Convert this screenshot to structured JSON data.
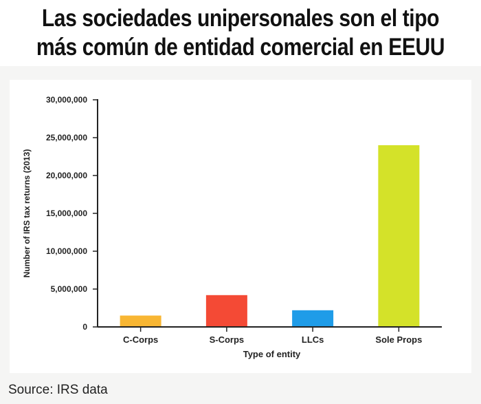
{
  "header": {
    "title_line1": "Las sociedades unipersonales son el tipo",
    "title_line2": "más común de entidad comercial en EEUU"
  },
  "footer": {
    "source": "Source: IRS data"
  },
  "colors": {
    "axis": "#222222",
    "text": "#222222"
  },
  "chart_data": {
    "type": "bar",
    "categories": [
      "C-Corps",
      "S-Corps",
      "LLCs",
      "Sole Props"
    ],
    "values": [
      1500000,
      4200000,
      2200000,
      24000000
    ],
    "bar_colors": [
      "#f8b633",
      "#f44a35",
      "#1f9ce8",
      "#d4e229"
    ],
    "xlabel": "Type of entity",
    "ylabel": "Number of IRS tax returns (2013)",
    "ylim": [
      0,
      30000000
    ],
    "yticks": [
      0,
      5000000,
      10000000,
      15000000,
      20000000,
      25000000,
      30000000
    ],
    "ytick_labels": [
      "0",
      "5,000,000",
      "10,000,000",
      "15,000,000",
      "20,000,000",
      "25,000,000",
      "30,000,000"
    ],
    "grid": false,
    "legend": "none"
  }
}
